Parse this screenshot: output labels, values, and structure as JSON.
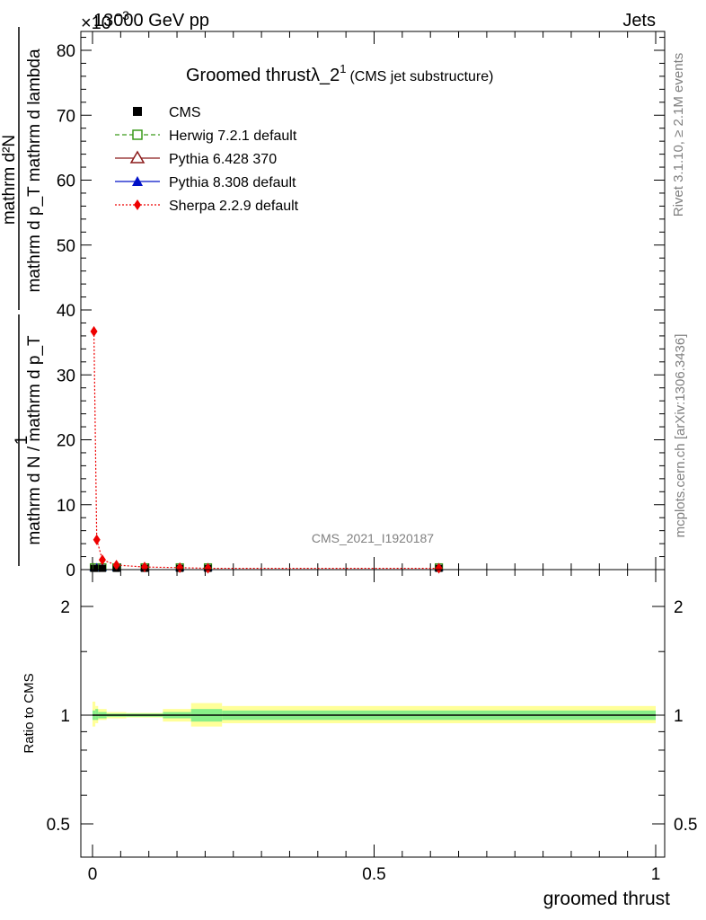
{
  "header": {
    "left": "13000 GeV pp",
    "right": "Jets",
    "exponent_prefix": "×10",
    "exponent": "−3"
  },
  "side": {
    "rivet": "Rivet 3.1.10, ≥ 2.1M events",
    "mcplots": "mcplots.cern.ch [arXiv:1306.3436]"
  },
  "chart_data": [
    {
      "type": "scatter",
      "title": "Groomed thrustλ_2",
      "title_sup": "1",
      "subtitle": "(CMS jet substructure)",
      "watermark": "CMS_2021_I1920187",
      "ylabel": {
        "numerator": "mathrm d²N",
        "denominator": "mathrm d p_T mathrm d lambda",
        "prefix_one": "1",
        "prefix_den": "mathrm d N / mathrm d p_T"
      },
      "xlim": [
        0,
        1
      ],
      "ylim": [
        0,
        83
      ],
      "y_scale_factor": "1e-3",
      "y_ticks": [
        "0",
        "10",
        "20",
        "30",
        "40",
        "50",
        "60",
        "70",
        "80"
      ],
      "legend": {
        "placement": "top-left",
        "entries": [
          {
            "name": "CMS",
            "color": "#000000",
            "marker": "filled-square"
          },
          {
            "name": "Herwig 7.2.1 default",
            "color": "#3a9a1a",
            "marker": "open-square"
          },
          {
            "name": "Pythia 6.428 370",
            "color": "#8b1a1a",
            "marker": "open-triangle"
          },
          {
            "name": "Pythia 8.308 default",
            "color": "#0010c8",
            "marker": "filled-triangle"
          },
          {
            "name": "Sherpa 2.2.9 default",
            "color": "#ee0000",
            "marker": "filled-diamond"
          }
        ]
      },
      "series": [
        {
          "name": "CMS",
          "x": [
            0.0025,
            0.0075,
            0.0175,
            0.0425,
            0.0925,
            0.155,
            0.205,
            0.615
          ],
          "y": [
            0.2,
            0.2,
            0.2,
            0.2,
            0.2,
            0.2,
            0.2,
            0.2
          ]
        },
        {
          "name": "Sherpa 2.2.9 default",
          "x": [
            0.0025,
            0.0075,
            0.0175,
            0.0425,
            0.0925,
            0.155,
            0.205,
            0.615
          ],
          "y": [
            36.7,
            4.6,
            1.5,
            0.7,
            0.4,
            0.3,
            0.2,
            0.2
          ]
        }
      ]
    },
    {
      "type": "line",
      "ylabel": "Ratio to CMS",
      "xlabel": "groomed thrust",
      "xlim": [
        0,
        1
      ],
      "ylim": [
        0.4,
        2.3
      ],
      "y_scale": "log",
      "y_ticks": [
        "0.5",
        "1",
        "2"
      ],
      "x_ticks": [
        "0",
        "0.5",
        "1"
      ],
      "reference": 1,
      "bands": [
        {
          "x0": 0.0,
          "x1": 0.005,
          "inner": [
            0.97,
            1.03
          ],
          "outer": [
            0.93,
            1.09
          ]
        },
        {
          "x0": 0.005,
          "x1": 0.01,
          "inner": [
            0.97,
            1.04
          ],
          "outer": [
            0.95,
            1.06
          ]
        },
        {
          "x0": 0.01,
          "x1": 0.025,
          "inner": [
            0.98,
            1.02
          ],
          "outer": [
            0.97,
            1.04
          ]
        },
        {
          "x0": 0.025,
          "x1": 0.06,
          "inner": [
            0.99,
            1.01
          ],
          "outer": [
            0.98,
            1.02
          ]
        },
        {
          "x0": 0.06,
          "x1": 0.125,
          "inner": [
            0.99,
            1.01
          ],
          "outer": [
            0.985,
            1.015
          ]
        },
        {
          "x0": 0.125,
          "x1": 0.175,
          "inner": [
            0.98,
            1.02
          ],
          "outer": [
            0.96,
            1.04
          ]
        },
        {
          "x0": 0.175,
          "x1": 0.23,
          "inner": [
            0.96,
            1.04
          ],
          "outer": [
            0.93,
            1.08
          ]
        },
        {
          "x0": 0.23,
          "x1": 1.0,
          "inner": [
            0.97,
            1.03
          ],
          "outer": [
            0.95,
            1.06
          ]
        }
      ]
    }
  ]
}
